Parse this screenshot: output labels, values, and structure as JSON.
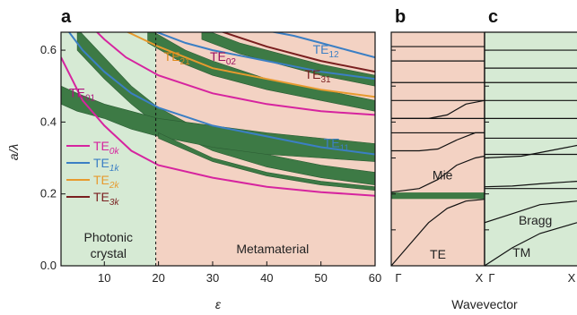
{
  "chart_data": [
    {
      "panel": "a",
      "type": "line",
      "xlabel": "ε",
      "ylabel": "a/λ",
      "xlim": [
        2,
        60
      ],
      "ylim": [
        0,
        0.65
      ],
      "xticks": [
        "10",
        "20",
        "30",
        "40",
        "50",
        "60"
      ],
      "yticks": [
        "0.0",
        "0.2",
        "0.4",
        "0.6"
      ],
      "divider_x": 19.5,
      "regions": [
        {
          "label": "Photonic crystal",
          "lines": [
            "Photonic",
            "crystal"
          ],
          "color": "#d6ead4"
        },
        {
          "label": "Metamaterial",
          "lines": [
            "Metamaterial"
          ],
          "color": "#f3d2c3"
        }
      ],
      "legend": [
        {
          "label": "TE",
          "sub": "0k",
          "color": "#d6249f"
        },
        {
          "label": "TE",
          "sub": "1k",
          "color": "#3b7fc4"
        },
        {
          "label": "TE",
          "sub": "2k",
          "color": "#e79a2e"
        },
        {
          "label": "TE",
          "sub": "3k",
          "color": "#7a1f1f"
        }
      ],
      "mode_labels": [
        {
          "label": "TE",
          "sub": "01",
          "color": "#b0127e",
          "x": 3.5,
          "y": 0.47
        },
        {
          "label": "TE",
          "sub": "21",
          "color": "#e08a1a",
          "x": 21,
          "y": 0.57
        },
        {
          "label": "TE",
          "sub": "02",
          "color": "#9a1060",
          "x": 29.5,
          "y": 0.57
        },
        {
          "label": "TE",
          "sub": "12",
          "color": "#3b7fc4",
          "x": 48.5,
          "y": 0.59
        },
        {
          "label": "TE",
          "sub": "31",
          "color": "#7a1f1f",
          "x": 47,
          "y": 0.52
        },
        {
          "label": "TE",
          "sub": "11",
          "color": "#3b7fc4",
          "x": 50.5,
          "y": 0.33
        }
      ],
      "series": [
        {
          "color": "#d6249f",
          "x": [
            2,
            4,
            6,
            10,
            15,
            20,
            30,
            40,
            50,
            60
          ],
          "y": [
            0.58,
            0.52,
            0.46,
            0.39,
            0.32,
            0.28,
            0.245,
            0.22,
            0.205,
            0.195
          ]
        },
        {
          "color": "#d6249f",
          "x": [
            8,
            10,
            14,
            20,
            30,
            40,
            50,
            60
          ],
          "y": [
            0.66,
            0.63,
            0.58,
            0.53,
            0.48,
            0.45,
            0.43,
            0.42
          ]
        },
        {
          "color": "#3b7fc4",
          "x": [
            3,
            6,
            10,
            15,
            20,
            30,
            40,
            50,
            60
          ],
          "y": [
            0.66,
            0.6,
            0.54,
            0.48,
            0.44,
            0.39,
            0.36,
            0.33,
            0.31
          ]
        },
        {
          "color": "#3b7fc4",
          "x": [
            18,
            25,
            30,
            40,
            50,
            60
          ],
          "y": [
            0.66,
            0.62,
            0.6,
            0.57,
            0.54,
            0.52
          ]
        },
        {
          "color": "#3b7fc4",
          "x": [
            38,
            45,
            50,
            55,
            60
          ],
          "y": [
            0.66,
            0.64,
            0.62,
            0.6,
            0.58
          ]
        },
        {
          "color": "#e79a2e",
          "x": [
            13,
            20,
            30,
            40,
            50,
            60
          ],
          "y": [
            0.66,
            0.61,
            0.55,
            0.52,
            0.49,
            0.47
          ]
        },
        {
          "color": "#7a1f1f",
          "x": [
            30,
            40,
            50,
            60
          ],
          "y": [
            0.66,
            0.61,
            0.57,
            0.54
          ]
        }
      ],
      "bands": [
        {
          "x": [
            5,
            10,
            15,
            20,
            30,
            40,
            50,
            60
          ],
          "upper": [
            0.66,
            0.58,
            0.5,
            0.44,
            0.36,
            0.31,
            0.28,
            0.26
          ],
          "lower": [
            0.6,
            0.52,
            0.45,
            0.39,
            0.32,
            0.275,
            0.245,
            0.225
          ]
        },
        {
          "x": [
            2,
            5,
            10,
            15,
            20,
            30,
            40,
            50,
            60
          ],
          "upper": [
            0.5,
            0.48,
            0.45,
            0.43,
            0.41,
            0.39,
            0.37,
            0.355,
            0.34
          ],
          "lower": [
            0.45,
            0.43,
            0.41,
            0.38,
            0.36,
            0.33,
            0.31,
            0.3,
            0.29
          ]
        },
        {
          "x": [
            18,
            25,
            30,
            40,
            50,
            60
          ],
          "upper": [
            0.66,
            0.6,
            0.57,
            0.52,
            0.49,
            0.46
          ],
          "lower": [
            0.62,
            0.56,
            0.53,
            0.49,
            0.46,
            0.43
          ]
        },
        {
          "x": [
            28,
            35,
            40,
            50,
            60
          ],
          "upper": [
            0.66,
            0.62,
            0.6,
            0.56,
            0.53
          ],
          "lower": [
            0.63,
            0.59,
            0.57,
            0.53,
            0.5
          ]
        },
        {
          "x": [
            20,
            30,
            40,
            50,
            60
          ],
          "upper": [
            0.37,
            0.3,
            0.26,
            0.235,
            0.22
          ],
          "lower": [
            0.355,
            0.29,
            0.25,
            0.225,
            0.21
          ]
        }
      ]
    },
    {
      "panel": "b",
      "type": "line",
      "xlabel": "",
      "xticks": [
        "Γ",
        "X"
      ],
      "ylim": [
        0,
        0.65
      ],
      "background": "#f3d2c3",
      "band_label": "Mie",
      "band_label_color": "#d6249f",
      "polarization": "TE",
      "gap_band": [
        0.186,
        0.204
      ],
      "flat_lines": [
        0.37,
        0.41,
        0.46,
        0.51,
        0.57,
        0.61
      ],
      "curves": [
        {
          "x": [
            0,
            0.2,
            0.4,
            0.6,
            0.8,
            1.0
          ],
          "y": [
            0.0,
            0.06,
            0.12,
            0.16,
            0.18,
            0.185
          ]
        },
        {
          "x": [
            0,
            0.3,
            0.5,
            0.7,
            0.9,
            1.0
          ],
          "y": [
            0.205,
            0.215,
            0.24,
            0.28,
            0.3,
            0.305
          ]
        },
        {
          "x": [
            0,
            0.3,
            0.5,
            0.7,
            0.9,
            1.0
          ],
          "y": [
            0.32,
            0.32,
            0.325,
            0.35,
            0.37,
            0.37
          ]
        },
        {
          "x": [
            0,
            0.4,
            0.6,
            0.8,
            1.0
          ],
          "y": [
            0.41,
            0.41,
            0.42,
            0.45,
            0.46
          ]
        }
      ]
    },
    {
      "panel": "c",
      "type": "line",
      "xlabel": "Wavevector",
      "xticks": [
        "Γ",
        "X"
      ],
      "ylim": [
        0,
        0.65
      ],
      "background": "#d6ead4",
      "band_label": "Bragg",
      "polarization": "TM",
      "flat_lines": [
        0.215,
        0.31,
        0.355,
        0.41,
        0.46,
        0.51,
        0.55,
        0.6
      ],
      "curves": [
        {
          "x": [
            0,
            0.3,
            0.6,
            1.0
          ],
          "y": [
            0.0,
            0.05,
            0.09,
            0.12
          ]
        },
        {
          "x": [
            0,
            0.3,
            0.6,
            1.0
          ],
          "y": [
            0.12,
            0.145,
            0.17,
            0.18
          ]
        },
        {
          "x": [
            0,
            0.3,
            0.6,
            1.0
          ],
          "y": [
            0.22,
            0.222,
            0.228,
            0.235
          ]
        },
        {
          "x": [
            0,
            0.4,
            0.7,
            1.0
          ],
          "y": [
            0.3,
            0.305,
            0.32,
            0.335
          ]
        }
      ]
    }
  ]
}
